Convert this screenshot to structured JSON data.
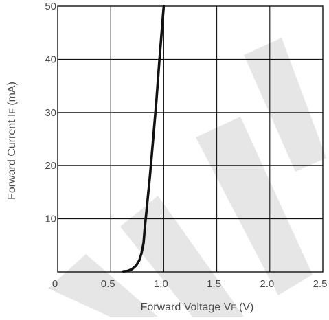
{
  "chart_data": {
    "type": "line",
    "title": "",
    "xlabel": "Forward Voltage VF (V)",
    "ylabel": "Forward Current IF (mA)",
    "xlabel_parts": {
      "main": "Forward Voltage V",
      "sub": "F",
      "tail": " (V)"
    },
    "ylabel_parts": {
      "main": "Forward Current I",
      "sub": "F",
      "tail": " (mA)"
    },
    "xlim": [
      0,
      2.5
    ],
    "ylim": [
      0,
      50
    ],
    "x_ticks": [
      0,
      0.5,
      1.0,
      1.5,
      2.0,
      2.5
    ],
    "x_tick_labels": [
      "0",
      "0.5",
      "1.0",
      "1.5",
      "2.0",
      "2.5"
    ],
    "y_ticks": [
      10,
      20,
      30,
      40,
      50
    ],
    "y_tick_labels": [
      "10",
      "20",
      "30",
      "40",
      "50"
    ],
    "grid": true,
    "legend": "none",
    "series": [
      {
        "color": "#111111",
        "points": [
          [
            0.62,
            0.1
          ],
          [
            0.66,
            0.2
          ],
          [
            0.7,
            0.5
          ],
          [
            0.74,
            1.2
          ],
          [
            0.77,
            2.2
          ],
          [
            0.79,
            3.5
          ],
          [
            0.81,
            5.5
          ],
          [
            0.82,
            8.0
          ],
          [
            0.84,
            12.0
          ],
          [
            0.87,
            18.0
          ],
          [
            0.9,
            25.0
          ],
          [
            0.93,
            32.0
          ],
          [
            0.96,
            40.0
          ],
          [
            0.98,
            45.0
          ],
          [
            1.0,
            50.0
          ]
        ]
      }
    ]
  }
}
